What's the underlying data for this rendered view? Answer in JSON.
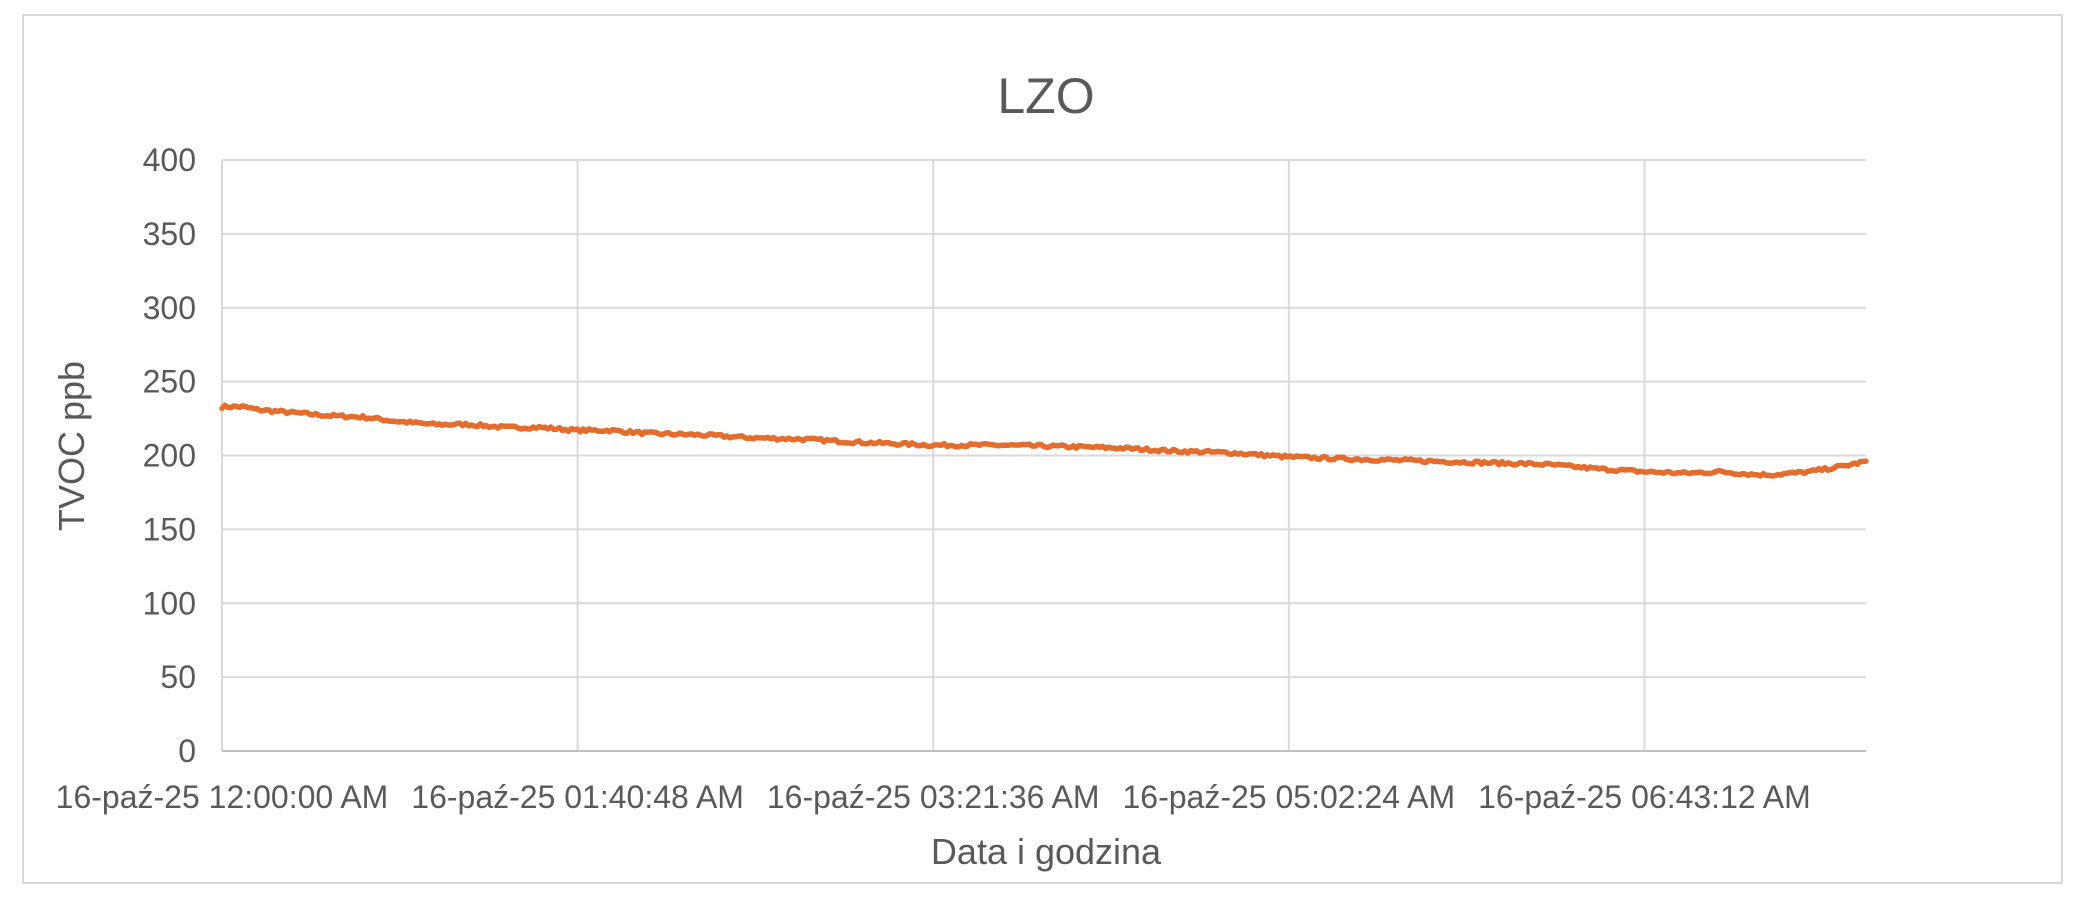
{
  "chart_data": {
    "type": "line",
    "title": "LZO",
    "xlabel": "Data i godzina",
    "ylabel": "TVOC ppb",
    "ylim": [
      0,
      400
    ],
    "yticks": [
      0,
      50,
      100,
      150,
      200,
      250,
      300,
      350,
      400
    ],
    "xlim": [
      "16-paź-25 12:00:00 AM",
      "16-paź-25 07:46:00 AM"
    ],
    "xticks": [
      "16-paź-25 12:00:00 AM",
      "16-paź-25 01:40:48 AM",
      "16-paź-25 03:21:36 AM",
      "16-paź-25 05:02:24 AM",
      "16-paź-25 06:43:12 AM"
    ],
    "grid": true,
    "legend": "none",
    "series": [
      {
        "color": "#e46c2c",
        "x": [
          "16-paź-25 12:00:00 AM",
          "16-paź-25 12:06:00 AM",
          "16-paź-25 12:10:00 AM",
          "16-paź-25 12:20:00 AM",
          "16-paź-25 12:30:00 AM",
          "16-paź-25 12:40:00 AM",
          "16-paź-25 12:50:00 AM",
          "16-paź-25 01:00:00 AM",
          "16-paź-25 01:10:00 AM",
          "16-paź-25 01:20:00 AM",
          "16-paź-25 01:30:00 AM",
          "16-paź-25 01:40:48 AM",
          "16-paź-25 01:50:00 AM",
          "16-paź-25 02:00:00 AM",
          "16-paź-25 02:15:00 AM",
          "16-paź-25 02:30:00 AM",
          "16-paź-25 02:45:00 AM",
          "16-paź-25 03:00:00 AM",
          "16-paź-25 03:21:36 AM",
          "16-paź-25 03:40:00 AM",
          "16-paź-25 04:00:00 AM",
          "16-paź-25 04:15:00 AM",
          "16-paź-25 04:30:00 AM",
          "16-paź-25 04:45:00 AM",
          "16-paź-25 05:02:24 AM",
          "16-paź-25 05:15:00 AM",
          "16-paź-25 05:30:00 AM",
          "16-paź-25 05:45:00 AM",
          "16-paź-25 06:00:00 AM",
          "16-paź-25 06:15:00 AM",
          "16-paź-25 06:30:00 AM",
          "16-paź-25 06:43:12 AM",
          "16-paź-25 06:55:00 AM",
          "16-paź-25 07:05:00 AM",
          "16-paź-25 07:10:00 AM",
          "16-paź-25 07:15:00 AM",
          "16-paź-25 07:20:00 AM",
          "16-paź-25 07:30:00 AM",
          "16-paź-25 07:40:00 AM",
          "16-paź-25 07:46:00 AM"
        ],
        "y": [
          233,
          233,
          231,
          229,
          227,
          226,
          223,
          221,
          221,
          219,
          219,
          217,
          217,
          215,
          214,
          212,
          211,
          209,
          207,
          207,
          206,
          205,
          203,
          202,
          199,
          198,
          197,
          196,
          195,
          194,
          191,
          189,
          188,
          189,
          188,
          187,
          187,
          189,
          193,
          196
        ]
      }
    ]
  }
}
